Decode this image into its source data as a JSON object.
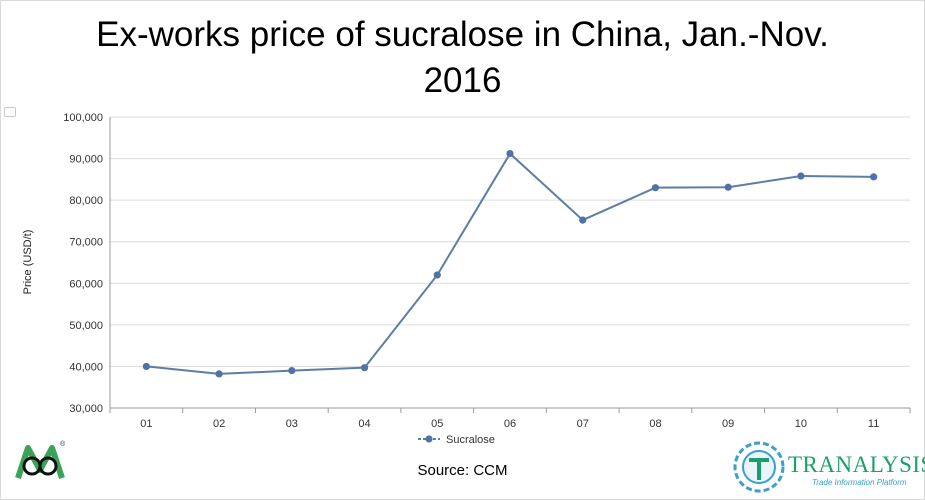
{
  "title_line1": "Ex-works price of sucralose in China, Jan.-Nov.",
  "title_line2": "2016",
  "source": "Source: CCM",
  "logo_right": {
    "name": "TRANALYSIS",
    "tagline": "Trade Information Platform"
  },
  "logo_left": {
    "registered_mark": "®"
  },
  "colors": {
    "series": "#5d7ea3",
    "marker": "#4f73a6",
    "grid": "#dcdcdc",
    "logo_green": "#1aa06a",
    "logo_blue": "#3a9fcc"
  },
  "chart_data": {
    "type": "line",
    "title": "Ex-works price of sucralose in China, Jan.-Nov. 2016",
    "xlabel": "",
    "ylabel": "Price (USD/t)",
    "categories": [
      "01",
      "02",
      "03",
      "04",
      "05",
      "06",
      "07",
      "08",
      "09",
      "10",
      "11"
    ],
    "series": [
      {
        "name": "Sucralose",
        "values": [
          40000,
          38200,
          39000,
          39700,
          62000,
          91200,
          75200,
          83000,
          83100,
          85800,
          85600
        ]
      }
    ],
    "ylim": [
      30000,
      100000
    ],
    "yticks": [
      "30,000",
      "40,000",
      "50,000",
      "60,000",
      "70,000",
      "80,000",
      "90,000",
      "100,000"
    ],
    "grid": true,
    "legend": "bottom-center"
  }
}
